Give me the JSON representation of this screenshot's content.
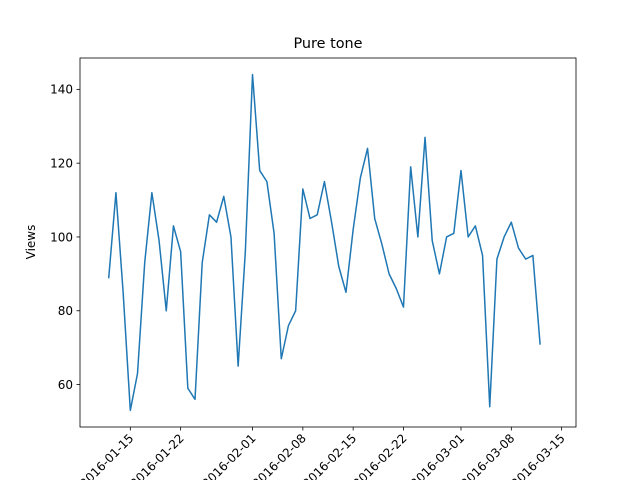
{
  "chart_data": {
    "type": "line",
    "title": "Pure tone",
    "xlabel": "",
    "ylabel": "Views",
    "grid": false,
    "legend": "none",
    "x_tick_labels": [
      "2016-01-15",
      "2016-01-22",
      "2016-02-01",
      "2016-02-08",
      "2016-02-15",
      "2016-02-22",
      "2016-03-01",
      "2016-03-08",
      "2016-03-15"
    ],
    "y_tick_labels": [
      "60",
      "80",
      "100",
      "120",
      "140"
    ],
    "y_ticks": [
      60,
      80,
      100,
      120,
      140
    ],
    "ylim": [
      48.5,
      148.5
    ],
    "xlim": [
      "2016-01-08",
      "2016-03-17"
    ],
    "series": [
      {
        "color": "#1f77b4",
        "x": [
          "2016-01-12",
          "2016-01-13",
          "2016-01-14",
          "2016-01-15",
          "2016-01-16",
          "2016-01-17",
          "2016-01-18",
          "2016-01-19",
          "2016-01-20",
          "2016-01-21",
          "2016-01-22",
          "2016-01-23",
          "2016-01-24",
          "2016-01-25",
          "2016-01-26",
          "2016-01-27",
          "2016-01-28",
          "2016-01-29",
          "2016-01-30",
          "2016-01-31",
          "2016-02-01",
          "2016-02-02",
          "2016-02-03",
          "2016-02-04",
          "2016-02-05",
          "2016-02-06",
          "2016-02-07",
          "2016-02-08",
          "2016-02-09",
          "2016-02-10",
          "2016-02-11",
          "2016-02-12",
          "2016-02-13",
          "2016-02-14",
          "2016-02-15",
          "2016-02-16",
          "2016-02-17",
          "2016-02-18",
          "2016-02-19",
          "2016-02-20",
          "2016-02-21",
          "2016-02-22",
          "2016-02-23",
          "2016-02-24",
          "2016-02-25",
          "2016-02-26",
          "2016-02-27",
          "2016-02-28",
          "2016-02-29",
          "2016-03-01",
          "2016-03-02",
          "2016-03-03",
          "2016-03-04",
          "2016-03-05",
          "2016-03-06",
          "2016-03-07",
          "2016-03-08",
          "2016-03-09",
          "2016-03-10",
          "2016-03-11",
          "2016-03-12"
        ],
        "values": [
          89,
          112,
          85,
          53,
          63,
          93,
          112,
          99,
          80,
          103,
          96,
          59,
          56,
          93,
          106,
          104,
          111,
          100,
          65,
          96,
          144,
          118,
          115,
          101,
          67,
          76,
          80,
          113,
          105,
          106,
          115,
          104,
          92,
          85,
          102,
          116,
          124,
          105,
          98,
          90,
          86,
          81,
          119,
          100,
          127,
          99,
          90,
          100,
          101,
          118,
          100,
          103,
          95,
          54,
          94,
          100,
          104,
          97,
          94,
          95,
          71
        ]
      }
    ]
  }
}
